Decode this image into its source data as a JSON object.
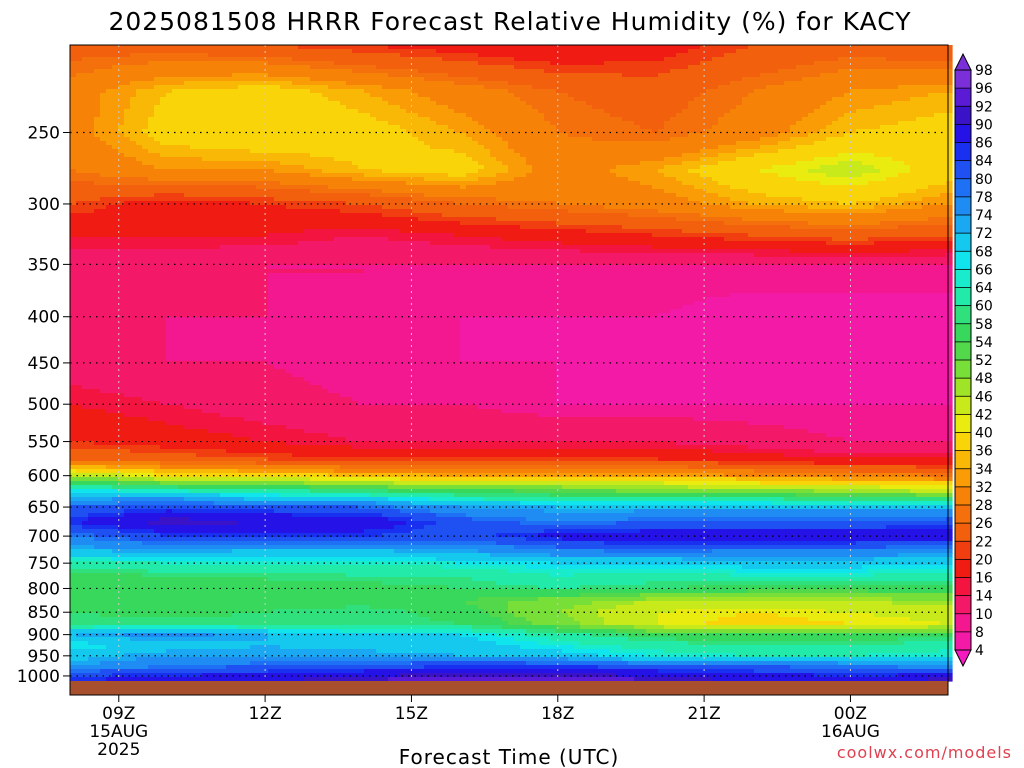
{
  "chart_data": {
    "type": "heatmap",
    "title": "2025081508 HRRR Forecast Relative Humidity (%) for KACY",
    "xlabel": "Forecast Time (UTC)",
    "ylabel": "",
    "x_ticks": [
      {
        "hour": 9,
        "lines": [
          "09Z",
          "15AUG",
          "2025"
        ]
      },
      {
        "hour": 12,
        "lines": [
          "12Z"
        ]
      },
      {
        "hour": 15,
        "lines": [
          "15Z"
        ]
      },
      {
        "hour": 18,
        "lines": [
          "18Z"
        ]
      },
      {
        "hour": 21,
        "lines": [
          "21Z"
        ]
      },
      {
        "hour": 24,
        "lines": [
          "00Z",
          "16AUG"
        ]
      }
    ],
    "xlim_hours": [
      8,
      26
    ],
    "y_axis_scale": "log-pressure",
    "y_ticks": [
      250,
      300,
      350,
      400,
      450,
      500,
      550,
      600,
      650,
      700,
      750,
      800,
      850,
      900,
      950,
      1000
    ],
    "ylim_hPa": [
      200,
      1013
    ],
    "grid": true,
    "colorbar": {
      "labels": [
        98,
        96,
        92,
        90,
        86,
        84,
        80,
        78,
        74,
        72,
        68,
        66,
        64,
        60,
        58,
        54,
        52,
        48,
        46,
        42,
        40,
        36,
        34,
        32,
        28,
        26,
        22,
        20,
        16,
        14,
        10,
        8,
        4
      ],
      "colors": [
        "#7b2fd9",
        "#5a1ad6",
        "#3a12c8",
        "#2412e6",
        "#1a30f0",
        "#1f50f2",
        "#1e70f4",
        "#1f8cf4",
        "#1aa8f2",
        "#14c8ee",
        "#10e4ec",
        "#18eccc",
        "#22eaa8",
        "#30e07c",
        "#38d85c",
        "#52d84a",
        "#78de38",
        "#a0e428",
        "#c8ea1a",
        "#eaec10",
        "#f8d408",
        "#fab806",
        "#fa9c06",
        "#f68208",
        "#f4700c",
        "#f2600e",
        "#f03e10",
        "#f01c14",
        "#f41440",
        "#f41868",
        "#f41890",
        "#f41aa8",
        "#f41ac0"
      ],
      "position": "right"
    },
    "description_levels_hPa": [
      200,
      225,
      250,
      275,
      300,
      325,
      350,
      400,
      450,
      500,
      550,
      575,
      600,
      625,
      650,
      675,
      700,
      725,
      750,
      775,
      800,
      825,
      850,
      875,
      900,
      925,
      950,
      975,
      1000,
      1013
    ],
    "x_hours": [
      8,
      10,
      12,
      14,
      16,
      18,
      20,
      22,
      24,
      26
    ],
    "rh": [
      [
        24,
        24,
        22,
        20,
        18,
        16,
        18,
        22,
        24,
        22
      ],
      [
        30,
        36,
        38,
        34,
        30,
        26,
        24,
        28,
        32,
        34
      ],
      [
        30,
        38,
        40,
        38,
        34,
        28,
        26,
        30,
        36,
        38
      ],
      [
        28,
        32,
        32,
        36,
        38,
        30,
        34,
        40,
        44,
        38
      ],
      [
        22,
        18,
        20,
        22,
        26,
        28,
        30,
        34,
        36,
        32
      ],
      [
        16,
        16,
        16,
        14,
        16,
        18,
        20,
        22,
        24,
        22
      ],
      [
        12,
        12,
        10,
        10,
        10,
        10,
        10,
        10,
        10,
        10
      ],
      [
        10,
        10,
        10,
        10,
        8,
        8,
        8,
        6,
        6,
        6
      ],
      [
        12,
        10,
        10,
        8,
        8,
        8,
        6,
        6,
        6,
        6
      ],
      [
        16,
        14,
        12,
        10,
        10,
        8,
        8,
        8,
        8,
        8
      ],
      [
        20,
        18,
        16,
        14,
        14,
        14,
        14,
        12,
        10,
        10
      ],
      [
        26,
        24,
        22,
        20,
        20,
        20,
        20,
        18,
        16,
        16
      ],
      [
        46,
        40,
        38,
        36,
        34,
        34,
        34,
        32,
        30,
        28
      ],
      [
        68,
        66,
        62,
        60,
        56,
        54,
        52,
        50,
        48,
        46
      ],
      [
        80,
        84,
        82,
        80,
        74,
        72,
        72,
        72,
        72,
        72
      ],
      [
        86,
        92,
        90,
        90,
        82,
        78,
        80,
        80,
        80,
        82
      ],
      [
        78,
        84,
        84,
        84,
        82,
        88,
        90,
        90,
        90,
        90
      ],
      [
        72,
        74,
        72,
        72,
        74,
        78,
        80,
        78,
        78,
        76
      ],
      [
        62,
        64,
        64,
        64,
        66,
        68,
        68,
        70,
        70,
        68
      ],
      [
        56,
        58,
        58,
        60,
        60,
        64,
        62,
        64,
        64,
        62
      ],
      [
        56,
        54,
        58,
        56,
        58,
        60,
        58,
        56,
        56,
        56
      ],
      [
        56,
        54,
        56,
        56,
        54,
        50,
        46,
        46,
        46,
        48
      ],
      [
        58,
        56,
        58,
        60,
        56,
        48,
        42,
        40,
        42,
        44
      ],
      [
        60,
        60,
        60,
        60,
        58,
        50,
        42,
        38,
        40,
        42
      ],
      [
        72,
        76,
        72,
        68,
        68,
        62,
        56,
        54,
        56,
        56
      ],
      [
        66,
        70,
        72,
        70,
        70,
        66,
        62,
        60,
        60,
        62
      ],
      [
        70,
        74,
        74,
        74,
        72,
        70,
        66,
        64,
        64,
        66
      ],
      [
        74,
        78,
        80,
        82,
        84,
        84,
        82,
        80,
        78,
        76
      ],
      [
        84,
        86,
        88,
        90,
        92,
        92,
        90,
        88,
        86,
        88
      ],
      [
        86,
        88,
        90,
        92,
        96,
        96,
        92,
        90,
        90,
        92
      ]
    ],
    "ground_color": "#a8502e"
  },
  "credit": "coolwx.com/models"
}
